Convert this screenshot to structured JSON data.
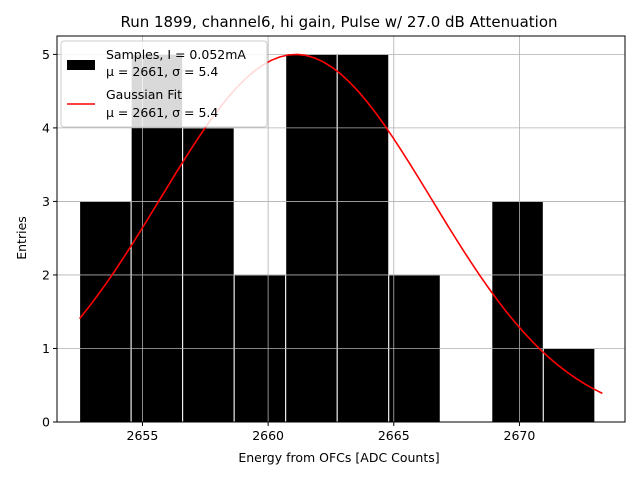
{
  "chart_data": {
    "type": "bar",
    "title": "Run 1899, channel6, hi gain, Pulse w/ 27.0 dB Attenuation",
    "xlabel": "Energy from OFCs [ADC Counts]",
    "ylabel": "Entries",
    "xlim": [
      2651.6,
      2674.2
    ],
    "ylim": [
      0,
      5.25
    ],
    "x_ticks": [
      2655,
      2660,
      2665,
      2670
    ],
    "y_ticks": [
      0,
      1,
      2,
      3,
      4,
      5
    ],
    "grid": true,
    "legend_position": "upper-left",
    "histogram": {
      "name": "Samples, I = 0.052mA",
      "stats": "μ = 2661, σ = 5.4",
      "color": "#000000",
      "edgecolor": "#ffffff",
      "bin_edges": [
        2652.5,
        2654.55,
        2656.6,
        2658.65,
        2660.7,
        2662.75,
        2664.8,
        2666.85,
        2668.9,
        2670.95,
        2673.0
      ],
      "values": [
        3,
        5,
        4,
        2,
        5,
        5,
        2,
        0,
        3,
        1
      ]
    },
    "fit": {
      "name": "Gaussian Fit",
      "stats": "μ = 2661, σ = 5.4",
      "color": "#ff0000",
      "amplitude": 5.0,
      "mu": 2661.1,
      "sigma": 5.4,
      "x_range": [
        2652.5,
        2673.3
      ]
    }
  }
}
